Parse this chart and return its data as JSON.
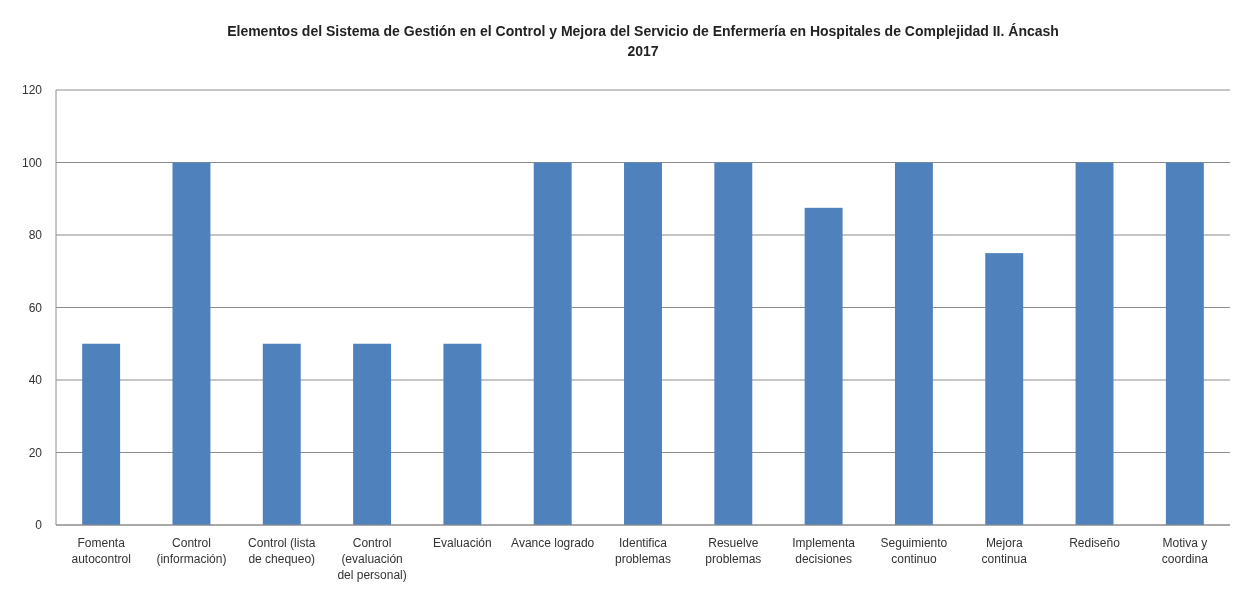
{
  "chart_data": {
    "type": "bar",
    "title": "Elementos del Sistema de Gestión en el Control y Mejora del Servicio de Enfermería en Hospitales de Complejidad II. Áncash 2017",
    "categories": [
      "Fomenta autocontrol",
      "Control (información)",
      "Control (lista de chequeo)",
      "Control (evaluación del personal)",
      "Evaluación",
      "Avance logrado",
      "Identifica problemas",
      "Resuelve problemas",
      "Implementa decisiones",
      "Seguimiento continuo",
      "Mejora continua",
      "Rediseño",
      "Motiva y coordina"
    ],
    "values": [
      50,
      100,
      50,
      50,
      50,
      100,
      100,
      100,
      87.5,
      100,
      75,
      100,
      100
    ],
    "color": "#4f81bd",
    "ylim": [
      0,
      120
    ],
    "yticks": [
      0,
      20,
      40,
      60,
      80,
      100,
      120
    ],
    "grid": "y"
  }
}
